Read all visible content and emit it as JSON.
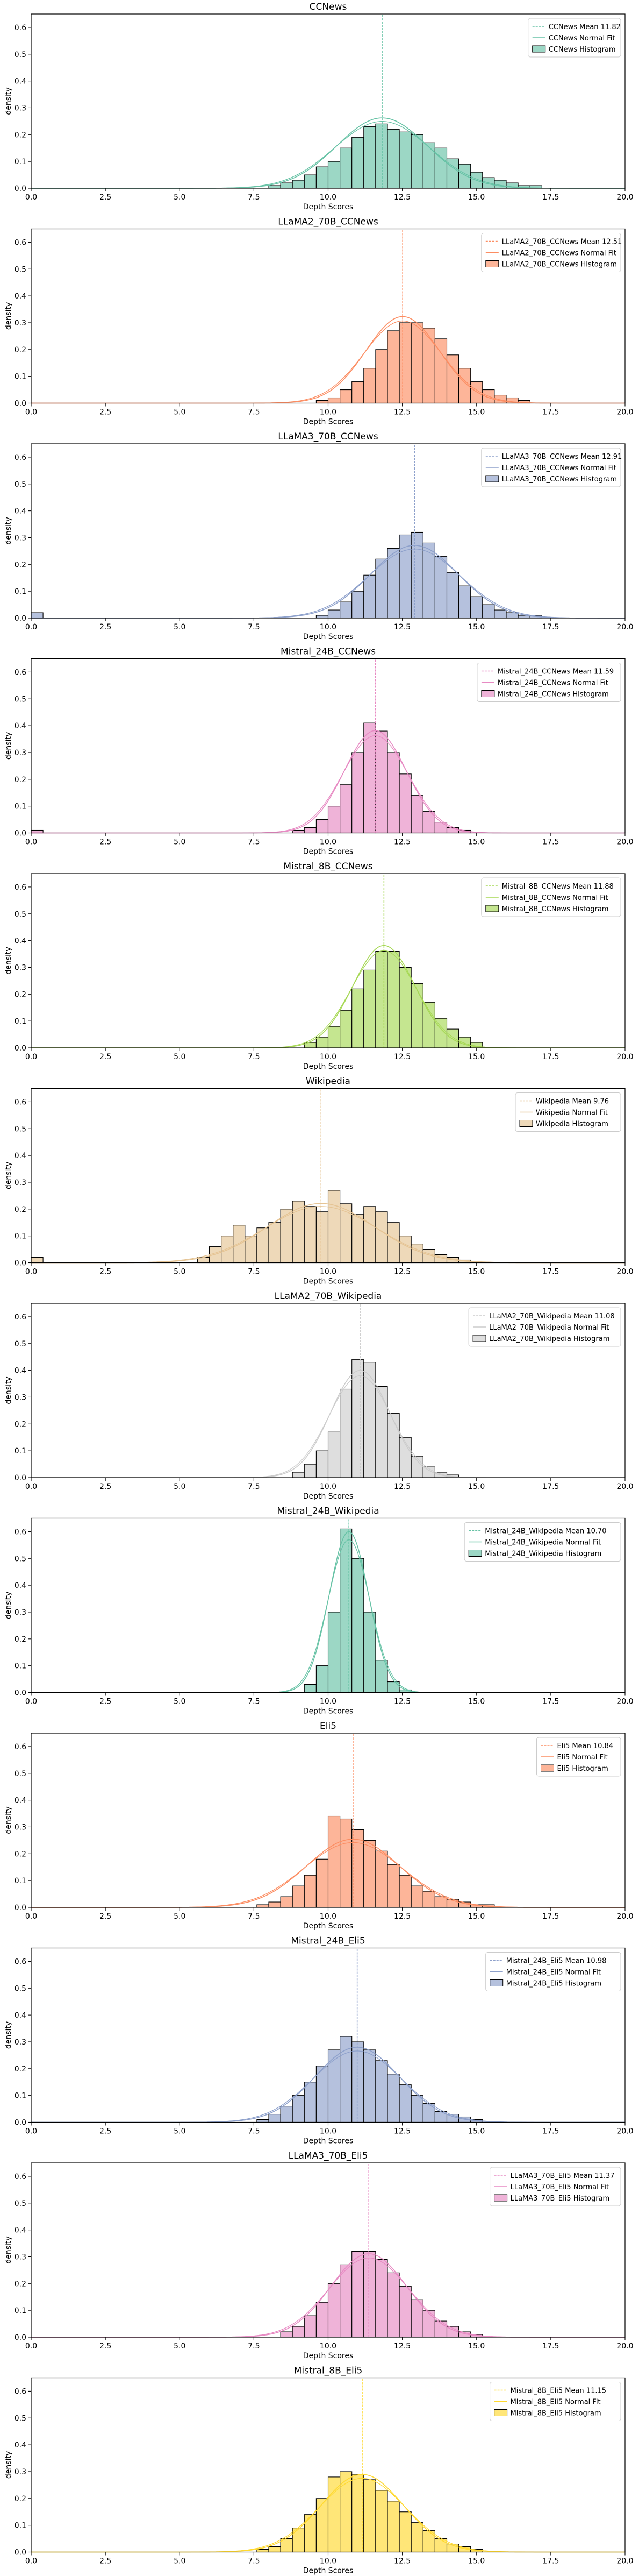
{
  "figure": {
    "xlabel": "Depth Scores",
    "ylabel": "density",
    "xlim": [
      0,
      20
    ],
    "ylim": [
      0,
      0.65
    ],
    "x_ticks": [
      "0.0",
      "2.5",
      "5.0",
      "7.5",
      "10.0",
      "12.5",
      "15.0",
      "17.5",
      "20.0"
    ],
    "y_ticks": [
      "0.0",
      "0.1",
      "0.2",
      "0.3",
      "0.4",
      "0.5",
      "0.6"
    ]
  },
  "chart_data": [
    {
      "type": "histogram",
      "title": "CCNews",
      "color": "#66c2a5",
      "mean": 11.82,
      "std": 1.6,
      "bins": [
        [
          8.0,
          0.01
        ],
        [
          8.4,
          0.02
        ],
        [
          8.8,
          0.03
        ],
        [
          9.2,
          0.05
        ],
        [
          9.6,
          0.08
        ],
        [
          10.0,
          0.1
        ],
        [
          10.4,
          0.15
        ],
        [
          10.8,
          0.19
        ],
        [
          11.2,
          0.23
        ],
        [
          11.6,
          0.24
        ],
        [
          12.0,
          0.22
        ],
        [
          12.4,
          0.21
        ],
        [
          12.8,
          0.2
        ],
        [
          13.2,
          0.17
        ],
        [
          13.6,
          0.15
        ],
        [
          14.0,
          0.11
        ],
        [
          14.4,
          0.09
        ],
        [
          14.8,
          0.06
        ],
        [
          15.2,
          0.04
        ],
        [
          15.6,
          0.03
        ],
        [
          16.0,
          0.02
        ],
        [
          16.4,
          0.01
        ],
        [
          16.8,
          0.01
        ]
      ],
      "legend": [
        "CCNews Mean 11.82",
        "CCNews Normal Fit",
        "CCNews Histogram"
      ]
    },
    {
      "type": "histogram",
      "title": "LLaMA2_70B_CCNews",
      "color": "#fc8d62",
      "mean": 12.51,
      "std": 1.3,
      "bins": [
        [
          9.6,
          0.01
        ],
        [
          10.0,
          0.02
        ],
        [
          10.4,
          0.05
        ],
        [
          10.8,
          0.08
        ],
        [
          11.2,
          0.13
        ],
        [
          11.6,
          0.2
        ],
        [
          12.0,
          0.27
        ],
        [
          12.4,
          0.3
        ],
        [
          12.8,
          0.3
        ],
        [
          13.2,
          0.28
        ],
        [
          13.6,
          0.24
        ],
        [
          14.0,
          0.18
        ],
        [
          14.4,
          0.13
        ],
        [
          14.8,
          0.08
        ],
        [
          15.2,
          0.05
        ],
        [
          15.6,
          0.03
        ],
        [
          16.0,
          0.02
        ],
        [
          16.4,
          0.01
        ]
      ],
      "legend": [
        "LLaMA2_70B_CCNews Mean 12.51",
        "LLaMA2_70B_CCNews Normal Fit",
        "LLaMA2_70B_CCNews Histogram"
      ]
    },
    {
      "type": "histogram",
      "title": "LLaMA3_70B_CCNews",
      "color": "#8da0cb",
      "mean": 12.91,
      "std": 1.55,
      "bins": [
        [
          0.0,
          0.02
        ],
        [
          9.6,
          0.01
        ],
        [
          10.0,
          0.03
        ],
        [
          10.4,
          0.06
        ],
        [
          10.8,
          0.1
        ],
        [
          11.2,
          0.16
        ],
        [
          11.6,
          0.22
        ],
        [
          12.0,
          0.26
        ],
        [
          12.4,
          0.31
        ],
        [
          12.8,
          0.32
        ],
        [
          13.2,
          0.28
        ],
        [
          13.6,
          0.23
        ],
        [
          14.0,
          0.17
        ],
        [
          14.4,
          0.12
        ],
        [
          14.8,
          0.08
        ],
        [
          15.2,
          0.05
        ],
        [
          15.6,
          0.03
        ],
        [
          16.0,
          0.02
        ],
        [
          16.4,
          0.01
        ],
        [
          16.8,
          0.01
        ]
      ],
      "legend": [
        "LLaMA3_70B_CCNews Mean 12.91",
        "LLaMA3_70B_CCNews Normal Fit",
        "LLaMA3_70B_CCNews Histogram"
      ]
    },
    {
      "type": "histogram",
      "title": "Mistral_24B_CCNews",
      "color": "#e78ac3",
      "mean": 11.59,
      "std": 1.1,
      "bins": [
        [
          0.0,
          0.01
        ],
        [
          8.8,
          0.01
        ],
        [
          9.2,
          0.02
        ],
        [
          9.6,
          0.05
        ],
        [
          10.0,
          0.1
        ],
        [
          10.4,
          0.18
        ],
        [
          10.8,
          0.3
        ],
        [
          11.2,
          0.41
        ],
        [
          11.6,
          0.38
        ],
        [
          12.0,
          0.3
        ],
        [
          12.4,
          0.22
        ],
        [
          12.8,
          0.14
        ],
        [
          13.2,
          0.08
        ],
        [
          13.6,
          0.04
        ],
        [
          14.0,
          0.02
        ],
        [
          14.4,
          0.01
        ]
      ],
      "legend": [
        "Mistral_24B_CCNews Mean 11.59",
        "Mistral_24B_CCNews Normal Fit",
        "Mistral_24B_CCNews Histogram"
      ]
    },
    {
      "type": "histogram",
      "title": "Mistral_8B_CCNews",
      "color": "#a6d854",
      "mean": 11.88,
      "std": 1.1,
      "bins": [
        [
          9.2,
          0.02
        ],
        [
          9.6,
          0.04
        ],
        [
          10.0,
          0.08
        ],
        [
          10.4,
          0.14
        ],
        [
          10.8,
          0.22
        ],
        [
          11.2,
          0.29
        ],
        [
          11.6,
          0.36
        ],
        [
          12.0,
          0.36
        ],
        [
          12.4,
          0.3
        ],
        [
          12.8,
          0.24
        ],
        [
          13.2,
          0.17
        ],
        [
          13.6,
          0.11
        ],
        [
          14.0,
          0.07
        ],
        [
          14.4,
          0.04
        ],
        [
          14.8,
          0.02
        ]
      ],
      "legend": [
        "Mistral_8B_CCNews Mean 11.88",
        "Mistral_8B_CCNews Normal Fit",
        "Mistral_8B_CCNews Histogram"
      ]
    },
    {
      "type": "histogram",
      "title": "Wikipedia",
      "color": "#e5c494",
      "mean": 9.76,
      "std": 1.9,
      "bins": [
        [
          0.0,
          0.02
        ],
        [
          5.6,
          0.02
        ],
        [
          6.0,
          0.06
        ],
        [
          6.4,
          0.1
        ],
        [
          6.8,
          0.14
        ],
        [
          7.2,
          0.1
        ],
        [
          7.6,
          0.13
        ],
        [
          8.0,
          0.15
        ],
        [
          8.4,
          0.2
        ],
        [
          8.8,
          0.23
        ],
        [
          9.2,
          0.21
        ],
        [
          9.6,
          0.19
        ],
        [
          10.0,
          0.27
        ],
        [
          10.4,
          0.22
        ],
        [
          10.8,
          0.18
        ],
        [
          11.2,
          0.21
        ],
        [
          11.6,
          0.19
        ],
        [
          12.0,
          0.15
        ],
        [
          12.4,
          0.1
        ],
        [
          12.8,
          0.07
        ],
        [
          13.2,
          0.05
        ],
        [
          13.6,
          0.03
        ],
        [
          14.0,
          0.02
        ],
        [
          14.4,
          0.01
        ]
      ],
      "legend": [
        "Wikipedia Mean 9.76",
        "Wikipedia Normal Fit",
        "Wikipedia Histogram"
      ]
    },
    {
      "type": "histogram",
      "title": "LLaMA2_70B_Wikipedia",
      "color": "#cccccc",
      "mean": 11.08,
      "std": 1.05,
      "bins": [
        [
          8.8,
          0.02
        ],
        [
          9.2,
          0.05
        ],
        [
          9.6,
          0.1
        ],
        [
          10.0,
          0.17
        ],
        [
          10.4,
          0.33
        ],
        [
          10.8,
          0.44
        ],
        [
          11.2,
          0.43
        ],
        [
          11.6,
          0.34
        ],
        [
          12.0,
          0.24
        ],
        [
          12.4,
          0.15
        ],
        [
          12.8,
          0.08
        ],
        [
          13.2,
          0.04
        ],
        [
          13.6,
          0.02
        ],
        [
          14.0,
          0.01
        ]
      ],
      "legend": [
        "LLaMA2_70B_Wikipedia Mean 11.08",
        "LLaMA2_70B_Wikipedia Normal Fit",
        "LLaMA2_70B_Wikipedia Histogram"
      ]
    },
    {
      "type": "histogram",
      "title": "Mistral_24B_Wikipedia",
      "color": "#66c2a5",
      "mean": 10.7,
      "std": 0.7,
      "bins": [
        [
          9.2,
          0.03
        ],
        [
          9.6,
          0.1
        ],
        [
          10.0,
          0.3
        ],
        [
          10.4,
          0.61
        ],
        [
          10.8,
          0.5
        ],
        [
          11.2,
          0.3
        ],
        [
          11.6,
          0.12
        ],
        [
          12.0,
          0.04
        ],
        [
          12.4,
          0.01
        ]
      ],
      "legend": [
        "Mistral_24B_Wikipedia Mean 10.70",
        "Mistral_24B_Wikipedia Normal Fit",
        "Mistral_24B_Wikipedia Histogram"
      ]
    },
    {
      "type": "histogram",
      "title": "Eli5",
      "color": "#fc8d62",
      "mean": 10.84,
      "std": 1.65,
      "bins": [
        [
          7.6,
          0.01
        ],
        [
          8.0,
          0.02
        ],
        [
          8.4,
          0.04
        ],
        [
          8.8,
          0.08
        ],
        [
          9.2,
          0.12
        ],
        [
          9.6,
          0.18
        ],
        [
          10.0,
          0.34
        ],
        [
          10.4,
          0.33
        ],
        [
          10.8,
          0.29
        ],
        [
          11.2,
          0.25
        ],
        [
          11.6,
          0.21
        ],
        [
          12.0,
          0.16
        ],
        [
          12.4,
          0.12
        ],
        [
          12.8,
          0.08
        ],
        [
          13.2,
          0.06
        ],
        [
          13.6,
          0.04
        ],
        [
          14.0,
          0.03
        ],
        [
          14.4,
          0.02
        ],
        [
          14.8,
          0.01
        ],
        [
          15.2,
          0.01
        ]
      ],
      "legend": [
        "Eli5 Mean 10.84",
        "Eli5 Normal Fit",
        "Eli5 Histogram"
      ]
    },
    {
      "type": "histogram",
      "title": "Mistral_24B_Eli5",
      "color": "#8da0cb",
      "mean": 10.98,
      "std": 1.5,
      "bins": [
        [
          7.6,
          0.01
        ],
        [
          8.0,
          0.03
        ],
        [
          8.4,
          0.06
        ],
        [
          8.8,
          0.1
        ],
        [
          9.2,
          0.15
        ],
        [
          9.6,
          0.21
        ],
        [
          10.0,
          0.27
        ],
        [
          10.4,
          0.32
        ],
        [
          10.8,
          0.3
        ],
        [
          11.2,
          0.27
        ],
        [
          11.6,
          0.23
        ],
        [
          12.0,
          0.18
        ],
        [
          12.4,
          0.14
        ],
        [
          12.8,
          0.1
        ],
        [
          13.2,
          0.07
        ],
        [
          13.6,
          0.04
        ],
        [
          14.0,
          0.03
        ],
        [
          14.4,
          0.02
        ],
        [
          14.8,
          0.01
        ]
      ],
      "legend": [
        "Mistral_24B_Eli5 Mean 10.98",
        "Mistral_24B_Eli5 Normal Fit",
        "Mistral_24B_Eli5 Histogram"
      ]
    },
    {
      "type": "histogram",
      "title": "LLaMA3_70B_Eli5",
      "color": "#e78ac3",
      "mean": 11.37,
      "std": 1.35,
      "bins": [
        [
          8.4,
          0.02
        ],
        [
          8.8,
          0.04
        ],
        [
          9.2,
          0.08
        ],
        [
          9.6,
          0.13
        ],
        [
          10.0,
          0.2
        ],
        [
          10.4,
          0.27
        ],
        [
          10.8,
          0.32
        ],
        [
          11.2,
          0.32
        ],
        [
          11.6,
          0.29
        ],
        [
          12.0,
          0.24
        ],
        [
          12.4,
          0.19
        ],
        [
          12.8,
          0.14
        ],
        [
          13.2,
          0.1
        ],
        [
          13.6,
          0.06
        ],
        [
          14.0,
          0.04
        ],
        [
          14.4,
          0.02
        ],
        [
          14.8,
          0.01
        ]
      ],
      "legend": [
        "LLaMA3_70B_Eli5 Mean 11.37",
        "LLaMA3_70B_Eli5 Normal Fit",
        "LLaMA3_70B_Eli5 Histogram"
      ]
    },
    {
      "type": "histogram",
      "title": "Mistral_8B_Eli5",
      "color": "#ffd92f",
      "mean": 11.15,
      "std": 1.45,
      "bins": [
        [
          7.6,
          0.01
        ],
        [
          8.0,
          0.02
        ],
        [
          8.4,
          0.05
        ],
        [
          8.8,
          0.09
        ],
        [
          9.2,
          0.14
        ],
        [
          9.6,
          0.2
        ],
        [
          10.0,
          0.28
        ],
        [
          10.4,
          0.3
        ],
        [
          10.8,
          0.29
        ],
        [
          11.2,
          0.27
        ],
        [
          11.6,
          0.23
        ],
        [
          12.0,
          0.19
        ],
        [
          12.4,
          0.15
        ],
        [
          12.8,
          0.11
        ],
        [
          13.2,
          0.08
        ],
        [
          13.6,
          0.05
        ],
        [
          14.0,
          0.03
        ],
        [
          14.4,
          0.02
        ],
        [
          14.8,
          0.01
        ]
      ],
      "legend": [
        "Mistral_8B_Eli5 Mean 11.15",
        "Mistral_8B_Eli5 Normal Fit",
        "Mistral_8B_Eli5 Histogram"
      ]
    }
  ]
}
